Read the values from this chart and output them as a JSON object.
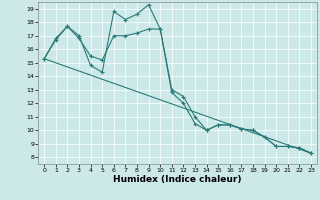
{
  "xlabel": "Humidex (Indice chaleur)",
  "bg_color": "#cce8e8",
  "grid_color": "#ffffff",
  "line_color": "#2a7a7a",
  "xlim": [
    -0.5,
    23.5
  ],
  "ylim": [
    7.5,
    19.5
  ],
  "xticks": [
    0,
    1,
    2,
    3,
    4,
    5,
    6,
    7,
    8,
    9,
    10,
    11,
    12,
    13,
    14,
    15,
    16,
    17,
    18,
    19,
    20,
    21,
    22,
    23
  ],
  "yticks": [
    8,
    9,
    10,
    11,
    12,
    13,
    14,
    15,
    16,
    17,
    18,
    19
  ],
  "series1_x": [
    0,
    1,
    2,
    3,
    4,
    5,
    6,
    7,
    8,
    9,
    10,
    11,
    12,
    13,
    14,
    15,
    16,
    17,
    18,
    19,
    20,
    21,
    22,
    23
  ],
  "series1_y": [
    15.3,
    16.8,
    17.7,
    17.0,
    14.8,
    14.3,
    18.8,
    18.2,
    18.6,
    19.3,
    17.5,
    12.8,
    12.0,
    10.5,
    10.0,
    10.4,
    10.4,
    10.1,
    10.0,
    9.5,
    8.8,
    8.8,
    8.7,
    8.3
  ],
  "series2_x": [
    0,
    1,
    2,
    3,
    4,
    5,
    6,
    7,
    8,
    9,
    10,
    11,
    12,
    13,
    14,
    15,
    16,
    17,
    18,
    19,
    20,
    21,
    22,
    23
  ],
  "series2_y": [
    15.3,
    16.7,
    17.7,
    16.8,
    15.5,
    15.2,
    17.0,
    17.0,
    17.2,
    17.5,
    17.5,
    13.0,
    12.5,
    11.0,
    10.0,
    10.4,
    10.4,
    10.1,
    10.0,
    9.5,
    8.8,
    8.8,
    8.7,
    8.3
  ],
  "trend_x": [
    0,
    23
  ],
  "trend_y": [
    15.3,
    8.3
  ]
}
